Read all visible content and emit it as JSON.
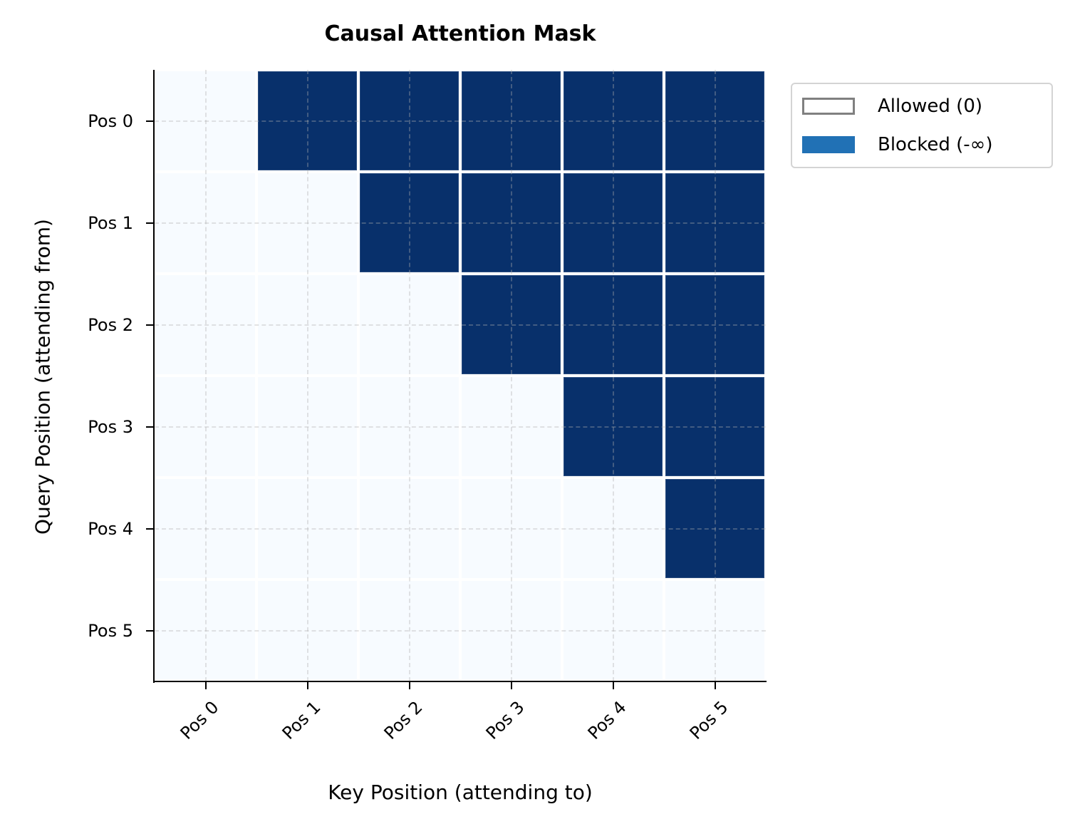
{
  "chart_data": {
    "type": "heatmap",
    "title": "Causal Attention Mask",
    "xlabel": "Key Position (attending to)",
    "ylabel": "Query Position (attending from)",
    "x_tick_labels": [
      "Pos 0",
      "Pos 1",
      "Pos 2",
      "Pos 3",
      "Pos 4",
      "Pos 5"
    ],
    "y_tick_labels": [
      "Pos 0",
      "Pos 1",
      "Pos 2",
      "Pos 3",
      "Pos 4",
      "Pos 5"
    ],
    "values": [
      [
        0,
        1,
        1,
        1,
        1,
        1
      ],
      [
        0,
        0,
        1,
        1,
        1,
        1
      ],
      [
        0,
        0,
        0,
        1,
        1,
        1
      ],
      [
        0,
        0,
        0,
        0,
        1,
        1
      ],
      [
        0,
        0,
        0,
        0,
        0,
        1
      ],
      [
        0,
        0,
        0,
        0,
        0,
        0
      ]
    ],
    "value_meaning": {
      "0": "Allowed (0)",
      "1": "Blocked (-∞)"
    },
    "grid": true,
    "legend_position": "upper right outside",
    "legend": [
      {
        "label": "Allowed (0)",
        "color": "#ffffff",
        "edge": "#808080"
      },
      {
        "label": "Blocked (-∞)",
        "color": "#2171b5"
      }
    ],
    "colors": {
      "allowed": "#f7fbff",
      "blocked": "#08306b"
    }
  }
}
